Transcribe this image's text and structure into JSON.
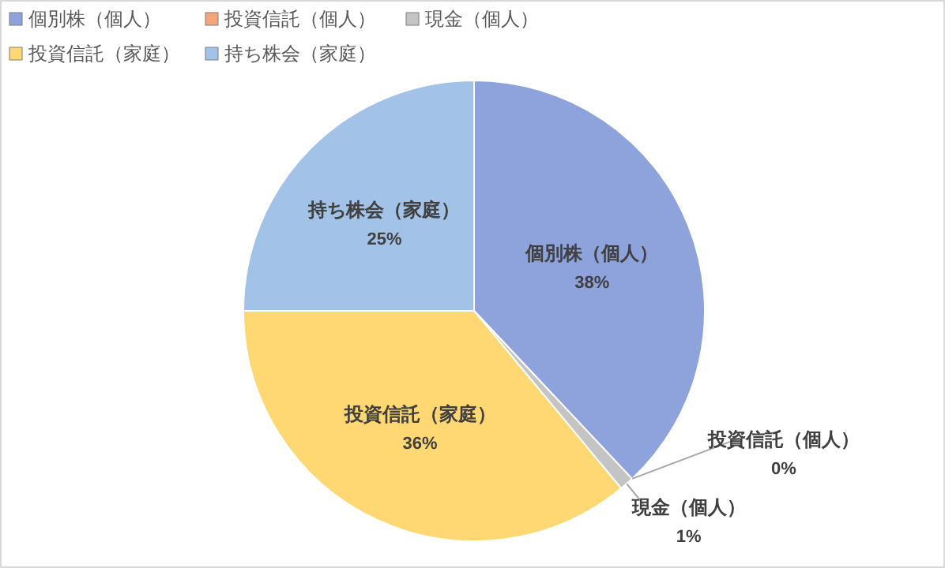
{
  "chart_data": {
    "type": "pie",
    "categories": [
      "個別株（個人）",
      "投資信託（個人）",
      "現金（個人）",
      "投資信託（家庭）",
      "持ち株会（家庭）"
    ],
    "values": [
      38,
      0,
      1,
      36,
      25
    ],
    "value_labels": [
      "38%",
      "0%",
      "1%",
      "36%",
      "25%"
    ],
    "colors": [
      "#8ea2dc",
      "#f4a57a",
      "#c4c4c4",
      "#ffd873",
      "#a2c2e8"
    ],
    "legend": "top left"
  }
}
